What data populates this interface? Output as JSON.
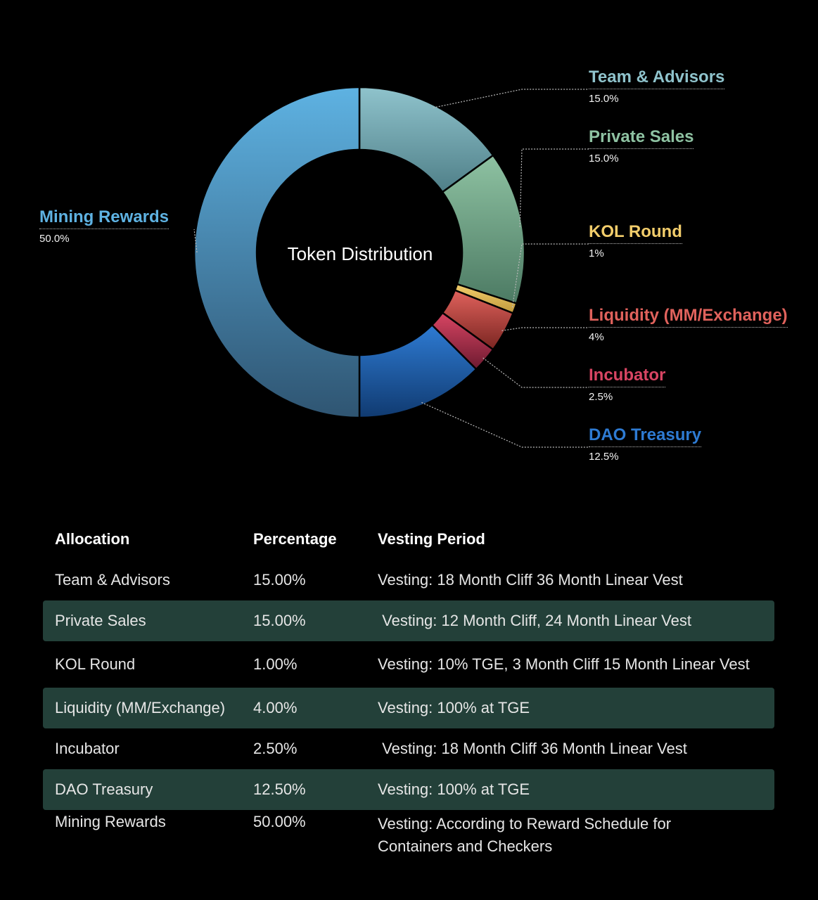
{
  "chart_data": {
    "type": "pie",
    "title": "Token Distribution",
    "slices": [
      {
        "label": "Team & Advisors",
        "value": 15.0,
        "display": "15.0%",
        "color": "#8fc3cc",
        "color_dark": "#4f7f88"
      },
      {
        "label": "Private Sales",
        "value": 15.0,
        "display": "15.0%",
        "color": "#8ec2a2",
        "color_dark": "#4c7a63"
      },
      {
        "label": "KOL Round",
        "value": 1,
        "display": "1%",
        "color": "#f2cd6b",
        "color_dark": "#c09a3d"
      },
      {
        "label": "Liquidity (MM/Exchange)",
        "value": 4,
        "display": "4%",
        "color": "#e0625c",
        "color_dark": "#7a2521"
      },
      {
        "label": "Incubator",
        "value": 2.5,
        "display": "2.5%",
        "color": "#d84563",
        "color_dark": "#6d1a30"
      },
      {
        "label": "DAO Treasury",
        "value": 12.5,
        "display": "12.5%",
        "color": "#2e7bd3",
        "color_dark": "#103a70"
      },
      {
        "label": "Mining Rewards",
        "value": 50.0,
        "display": "50.0%",
        "color": "#5eb2e2",
        "color_dark": "#2f5572"
      }
    ]
  },
  "table": {
    "headers": [
      "Allocation",
      "Percentage",
      "Vesting Period"
    ],
    "rows": [
      {
        "allocation": "Team & Advisors",
        "percentage": "15.00%",
        "vesting": "Vesting: 18 Month Cliff 36 Month Linear Vest",
        "shaded": false
      },
      {
        "allocation": "Private Sales",
        "percentage": "15.00%",
        "vesting": " Vesting: 12 Month Cliff, 24 Month Linear Vest",
        "shaded": true
      },
      {
        "allocation": "KOL Round",
        "percentage": "1.00%",
        "vesting": "Vesting: 10% TGE, 3 Month Cliff 15 Month Linear Vest",
        "shaded": false
      },
      {
        "allocation": "Liquidity (MM/Exchange)",
        "percentage": "4.00%",
        "vesting": "Vesting: 100% at TGE",
        "shaded": true
      },
      {
        "allocation": "Incubator",
        "percentage": "2.50%",
        "vesting": " Vesting: 18 Month Cliff 36 Month Linear Vest",
        "shaded": false
      },
      {
        "allocation": "DAO Treasury",
        "percentage": "12.50%",
        "vesting": "Vesting: 100% at TGE",
        "shaded": true
      },
      {
        "allocation": "Mining Rewards",
        "percentage": "50.00%",
        "vesting": "Vesting: According to Reward Schedule for Containers and Checkers",
        "shaded": false
      }
    ]
  }
}
